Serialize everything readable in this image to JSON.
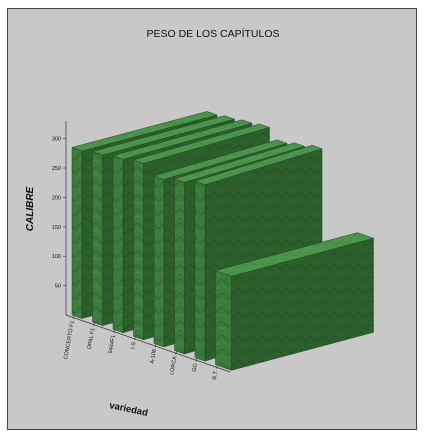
{
  "chart_data": {
    "type": "bar",
    "title": "PESO DE LOS CAPÍTULOS",
    "xlabel": "variedad",
    "ylabel": "CALIBRE",
    "categories": [
      "CONCERTO F1",
      "OPAL F1",
      "9444F1",
      "I-S",
      "A-106",
      "LORCA",
      "GG",
      "B.T."
    ],
    "values": [
      285,
      290,
      295,
      300,
      285,
      292,
      300,
      160
    ],
    "yticks": [
      50,
      100,
      150,
      200,
      250,
      300
    ],
    "ylim": [
      0,
      330
    ],
    "grid": false,
    "colors": {
      "bar_front": "#3a7a3a",
      "bar_side": "#2b5f2b",
      "bar_top": "#4f9a4f",
      "background": "#c8c8c8"
    }
  }
}
